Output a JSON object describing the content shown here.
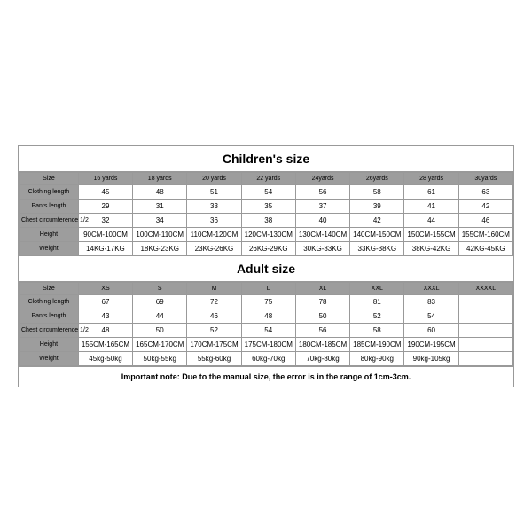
{
  "colors": {
    "header_bg": "#9d9d9d",
    "border": "#999999",
    "background": "#ffffff",
    "text": "#000000"
  },
  "childrens": {
    "title": "Children's size",
    "headers": [
      "Size",
      "16 yards",
      "18 yards",
      "20 yards",
      "22 yards",
      "24yards",
      "26yards",
      "28 yards",
      "30yards"
    ],
    "rows": [
      {
        "label": "Clothing length",
        "cells": [
          "45",
          "48",
          "51",
          "54",
          "56",
          "58",
          "61",
          "63"
        ]
      },
      {
        "label": "Pants length",
        "cells": [
          "29",
          "31",
          "33",
          "35",
          "37",
          "39",
          "41",
          "42"
        ]
      },
      {
        "label": "Chest circumference 1/2",
        "cells": [
          "32",
          "34",
          "36",
          "38",
          "40",
          "42",
          "44",
          "46"
        ]
      },
      {
        "label": "Height",
        "cells": [
          "90CM-100CM",
          "100CM-110CM",
          "110CM-120CM",
          "120CM-130CM",
          "130CM-140CM",
          "140CM-150CM",
          "150CM-155CM",
          "155CM-160CM"
        ]
      },
      {
        "label": "Weight",
        "cells": [
          "14KG-17KG",
          "18KG-23KG",
          "23KG-26KG",
          "26KG-29KG",
          "30KG-33KG",
          "33KG-38KG",
          "38KG-42KG",
          "42KG-45KG"
        ]
      }
    ]
  },
  "adult": {
    "title": "Adult size",
    "headers": [
      "Size",
      "XS",
      "S",
      "M",
      "L",
      "XL",
      "XXL",
      "XXXL",
      "XXXXL"
    ],
    "rows": [
      {
        "label": "Clothing length",
        "cells": [
          "67",
          "69",
          "72",
          "75",
          "78",
          "81",
          "83",
          ""
        ]
      },
      {
        "label": "Pants length",
        "cells": [
          "43",
          "44",
          "46",
          "48",
          "50",
          "52",
          "54",
          ""
        ]
      },
      {
        "label": "Chest circumference 1/2",
        "cells": [
          "48",
          "50",
          "52",
          "54",
          "56",
          "58",
          "60",
          ""
        ]
      },
      {
        "label": "Height",
        "cells": [
          "155CM-165CM",
          "165CM-170CM",
          "170CM-175CM",
          "175CM-180CM",
          "180CM-185CM",
          "185CM-190CM",
          "190CM-195CM",
          ""
        ]
      },
      {
        "label": "Weight",
        "cells": [
          "45kg-50kg",
          "50kg-55kg",
          "55kg-60kg",
          "60kg-70kg",
          "70kg-80kg",
          "80kg-90kg",
          "90kg-105kg",
          ""
        ]
      }
    ]
  },
  "note": "Important note: Due to the manual size, the error is in the range of 1cm-3cm."
}
